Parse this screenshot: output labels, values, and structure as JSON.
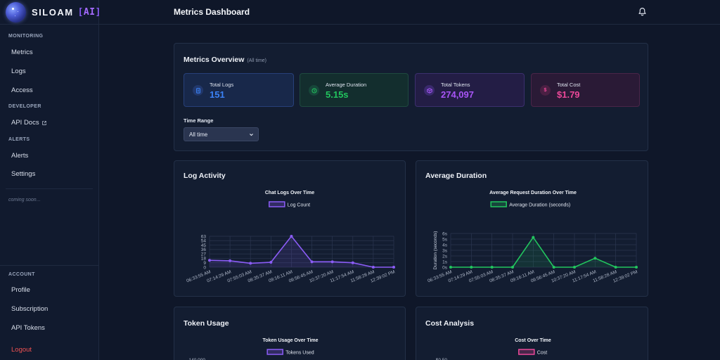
{
  "brand": {
    "name": "SILOAM",
    "ai": "AI"
  },
  "sidebar": {
    "sections": [
      {
        "label": "MONITORING",
        "items": [
          "Metrics",
          "Logs",
          "Access"
        ]
      },
      {
        "label": "DEVELOPER",
        "items": [
          "API Docs"
        ]
      },
      {
        "label": "ALERTS",
        "items": [
          "Alerts",
          "Settings"
        ]
      }
    ],
    "coming_soon": "coming soon...",
    "account": {
      "label": "ACCOUNT",
      "items": [
        "Profile",
        "Subscription",
        "API Tokens"
      ],
      "logout": "Logout"
    }
  },
  "header": {
    "title": "Metrics Dashboard",
    "icon": "bell-icon"
  },
  "overview": {
    "title": "Metrics Overview",
    "subtitle": "(All time)",
    "stats": [
      {
        "label": "Total Logs",
        "value": "151",
        "icon": "document-icon",
        "color": "#3b82f6"
      },
      {
        "label": "Average Duration",
        "value": "5.15s",
        "icon": "clock-icon",
        "color": "#22c55e"
      },
      {
        "label": "Total Tokens",
        "value": "274,097",
        "icon": "cube-icon",
        "color": "#a855f7"
      },
      {
        "label": "Total Cost",
        "value": "$1.79",
        "icon": "dollar-icon",
        "color": "#ec4899"
      }
    ],
    "time_range_label": "Time Range",
    "time_range_value": "All time"
  },
  "panels": {
    "log_activity": "Log Activity",
    "avg_duration": "Average Duration",
    "token_usage": "Token Usage",
    "cost_analysis": "Cost Analysis"
  },
  "chart_data": [
    {
      "type": "line",
      "title": "Chat Logs Over Time",
      "x": [
        "06:33:55 AM",
        "07:14:29 AM",
        "07:55:03 AM",
        "08:35:37 AM",
        "09:16:11 AM",
        "09:56:45 AM",
        "10:37:20 AM",
        "11:17:54 AM",
        "11:58:28 AM",
        "12:39:02 PM"
      ],
      "series": [
        {
          "name": "Log Count",
          "values": [
            14,
            13,
            8,
            10,
            63,
            11,
            11,
            9,
            0,
            0
          ],
          "color": "#8b5cf6"
        }
      ],
      "yticks": [
        "0",
        "9",
        "18",
        "27",
        "36",
        "45",
        "54",
        "63"
      ],
      "ylim": [
        0,
        63
      ],
      "grid": true,
      "legend": "top-center"
    },
    {
      "type": "line",
      "title": "Average Request Duration Over Time",
      "x": [
        "06:33:55 AM",
        "07:14:29 AM",
        "07:55:03 AM",
        "08:35:37 AM",
        "09:16:11 AM",
        "09:56:45 AM",
        "10:37:20 AM",
        "11:17:54 AM",
        "11:58:28 AM",
        "12:39:02 PM"
      ],
      "series": [
        {
          "name": "Average Duration (seconds)",
          "values": [
            0,
            0,
            0,
            0,
            5.3,
            0,
            0,
            1.6,
            0,
            0
          ],
          "color": "#22c55e"
        }
      ],
      "ylabel": "Duration (seconds)",
      "yticks": [
        "0s",
        "1s",
        "2s",
        "3s",
        "4s",
        "5s",
        "6s"
      ],
      "ylim": [
        0,
        6
      ],
      "grid": true,
      "legend": "top-center"
    },
    {
      "type": "line",
      "title": "Token Usage Over Time",
      "series": [
        {
          "name": "Tokens Used",
          "color": "#8b5cf6"
        }
      ],
      "yticks": [
        "140,000"
      ],
      "legend": "top-center"
    },
    {
      "type": "line",
      "title": "Cost Over Time",
      "series": [
        {
          "name": "Cost",
          "color": "#ec4899"
        }
      ],
      "yticks": [
        "$0.50"
      ],
      "legend": "top-center"
    }
  ]
}
